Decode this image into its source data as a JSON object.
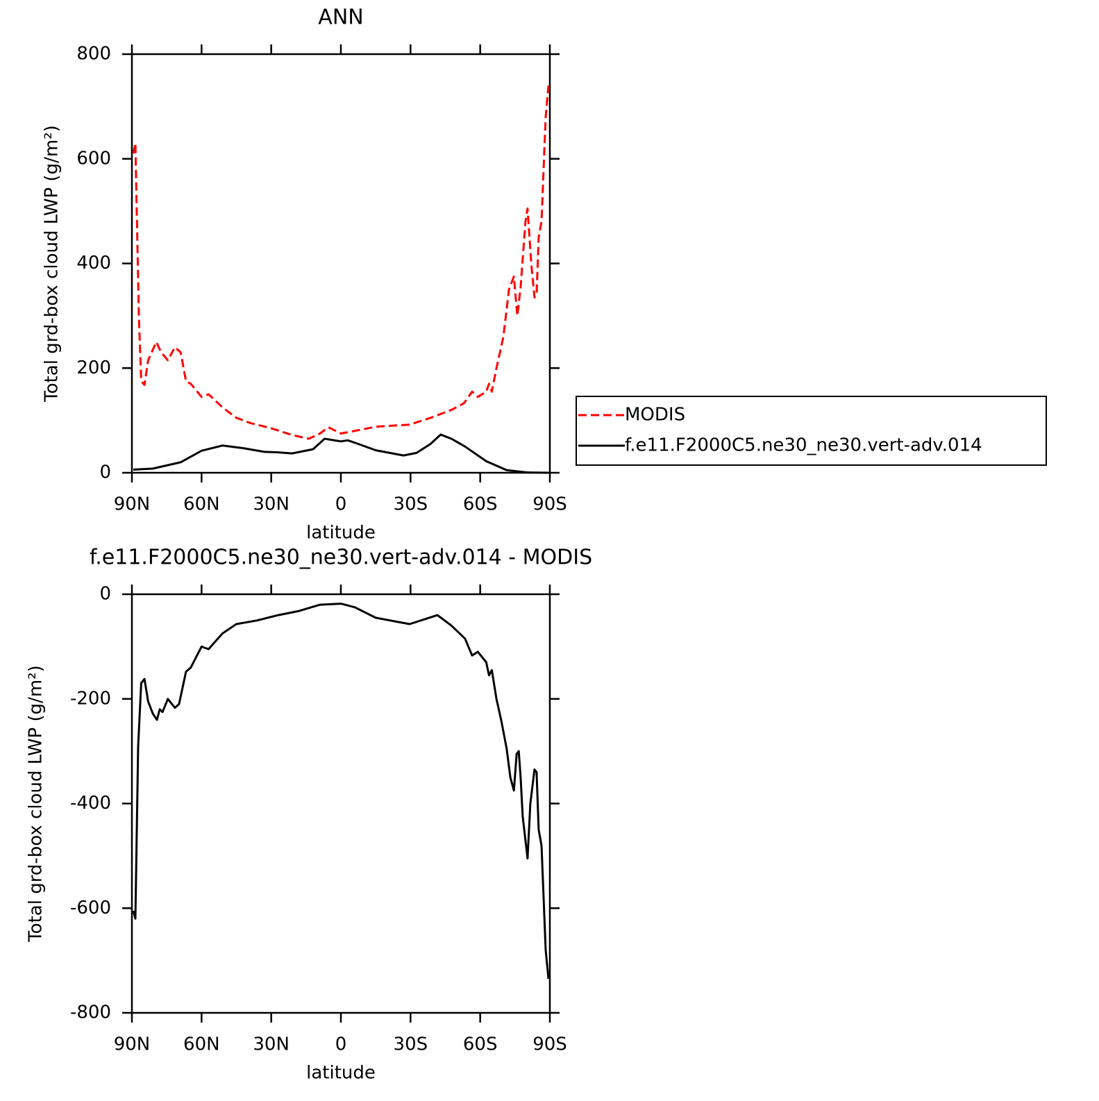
{
  "chart_data": [
    {
      "type": "line",
      "title": "ANN",
      "xlabel": "latitude",
      "ylabel": "Total grd-box cloud LWP (g/m²)",
      "xlim": [
        90,
        -90
      ],
      "xticks": [
        {
          "value": 90,
          "label": "90N"
        },
        {
          "value": 60,
          "label": "60N"
        },
        {
          "value": 30,
          "label": "30N"
        },
        0,
        {
          "value": -30,
          "label": "30S"
        },
        {
          "value": -60,
          "label": "60S"
        },
        {
          "value": -90,
          "label": "90S"
        }
      ],
      "ylim": [
        0,
        800
      ],
      "yticks": [
        0,
        200,
        400,
        600,
        800
      ],
      "legend": "right",
      "series": [
        {
          "name": "MODIS",
          "color": "#ff0000",
          "linestyle": "dashed",
          "x": [
            89.4,
            88.5,
            87,
            86,
            84.6,
            83,
            81,
            79.5,
            77.4,
            74.5,
            71.5,
            69,
            66.7,
            64.6,
            60,
            57,
            51,
            45,
            39,
            30,
            21,
            13.8,
            9,
            5.4,
            0,
            -6,
            -15,
            -29.6,
            -38.6,
            -47.6,
            -53,
            -56.5,
            -59,
            -62.6,
            -63.8,
            -65,
            -67,
            -70,
            -72.4,
            -74.5,
            -76,
            -77.4,
            -79.5,
            -80.4,
            -82,
            -83.4,
            -84.3,
            -85.2,
            -86.4,
            -88.2,
            -89.4
          ],
          "values": [
            610,
            630,
            300,
            175,
            168,
            215,
            235,
            250,
            230,
            215,
            240,
            230,
            175,
            170,
            145,
            150,
            125,
            105,
            95,
            85,
            72,
            65,
            75,
            87,
            75,
            80,
            88,
            92,
            105,
            120,
            133,
            155,
            145,
            155,
            170,
            155,
            200,
            260,
            350,
            375,
            300,
            355,
            480,
            505,
            400,
            335,
            340,
            450,
            480,
            680,
            740
          ]
        },
        {
          "name": "f.e11.F2000C5.ne30_ne30.vert-adv.014",
          "color": "#000000",
          "linestyle": "solid",
          "x": [
            89.4,
            81,
            69,
            60,
            51,
            42,
            33,
            27,
            21,
            12,
            7,
            0,
            -3,
            -7.5,
            -15,
            -27,
            -32.6,
            -38.6,
            -43,
            -47.6,
            -53.5,
            -62.6,
            -71.4,
            -80.4,
            -89.4
          ],
          "values": [
            6,
            8,
            20,
            42,
            52,
            47,
            40,
            39,
            37,
            45,
            65,
            60,
            62,
            55,
            43,
            33,
            38,
            55,
            73,
            65,
            50,
            22,
            5,
            0.5,
            0
          ]
        }
      ]
    },
    {
      "type": "line",
      "title": "f.e11.F2000C5.ne30_ne30.vert-adv.014 - MODIS",
      "xlabel": "latitude",
      "ylabel": "Total grd-box cloud LWP (g/m²)",
      "xlim": [
        90,
        -90
      ],
      "xticks": [
        {
          "value": 90,
          "label": "90N"
        },
        {
          "value": 60,
          "label": "60N"
        },
        {
          "value": 30,
          "label": "30N"
        },
        0,
        {
          "value": -30,
          "label": "30S"
        },
        {
          "value": -60,
          "label": "60S"
        },
        {
          "value": -90,
          "label": "90S"
        }
      ],
      "ylim": [
        -800,
        0
      ],
      "yticks": [
        -800,
        -600,
        -400,
        -200,
        0
      ],
      "series": [
        {
          "color": "#000000",
          "linestyle": "solid",
          "x": [
            89.4,
            88.5,
            87.3,
            86,
            84.6,
            83,
            81,
            79.2,
            78,
            76.8,
            74.5,
            71.5,
            69.7,
            66.7,
            64.6,
            60,
            57,
            51,
            45,
            36,
            27,
            18,
            9,
            0,
            -6,
            -15,
            -29.6,
            -41.6,
            -47.6,
            -53.5,
            -56.5,
            -59,
            -62.6,
            -63.8,
            -65,
            -67,
            -69,
            -71.4,
            -73,
            -74.5,
            -75.7,
            -76.6,
            -77.4,
            -78.3,
            -80.4,
            -81.6,
            -83.4,
            -84.3,
            -85.2,
            -86.4,
            -88.2,
            -89.4
          ],
          "values": [
            -605,
            -620,
            -290,
            -170,
            -162,
            -205,
            -228,
            -240,
            -220,
            -225,
            -200,
            -217,
            -210,
            -148,
            -140,
            -100,
            -105,
            -75,
            -57,
            -50,
            -40,
            -32,
            -20,
            -18,
            -25,
            -45,
            -57,
            -40,
            -60,
            -85,
            -117,
            -110,
            -130,
            -155,
            -145,
            -200,
            -240,
            -295,
            -350,
            -375,
            -305,
            -300,
            -350,
            -425,
            -505,
            -400,
            -335,
            -340,
            -450,
            -480,
            -680,
            -735
          ]
        }
      ]
    }
  ]
}
